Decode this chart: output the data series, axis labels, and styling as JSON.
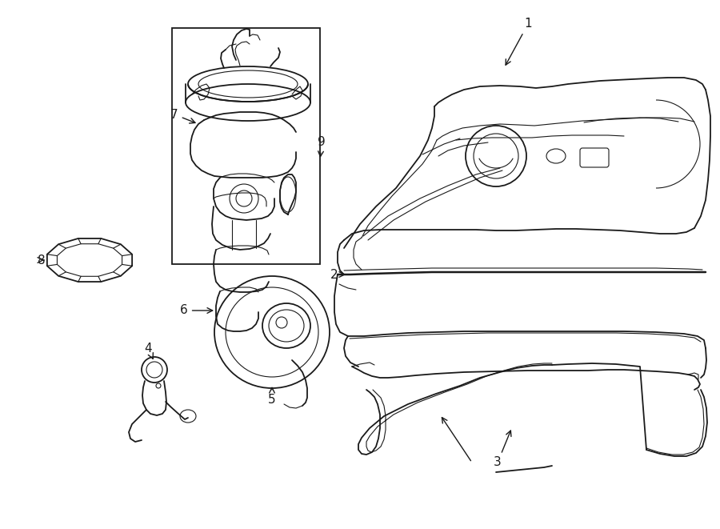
{
  "background_color": "#ffffff",
  "line_color": "#1a1a1a",
  "figsize": [
    9.0,
    6.61
  ],
  "dpi": 100,
  "lw": 1.3,
  "lw_thin": 0.8,
  "lw_thick": 1.8,
  "label_fs": 11
}
